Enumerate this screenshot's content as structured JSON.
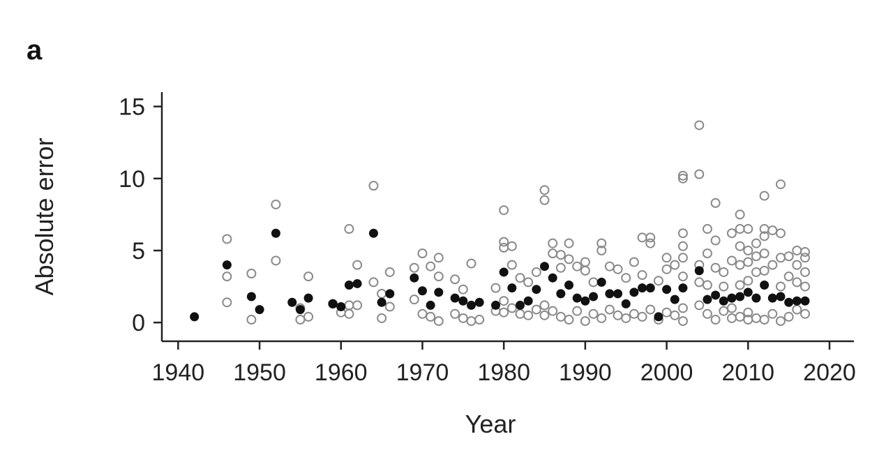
{
  "panel_label": "a",
  "colors": {
    "summary": "#111111",
    "observation": "#8a8a8a",
    "axis": "#222222"
  },
  "chart_data": {
    "type": "scatter",
    "title": "",
    "xlabel": "Year",
    "ylabel": "Absolute error",
    "xlim": [
      1938,
      2023
    ],
    "ylim": [
      -1.3,
      16
    ],
    "xticks": [
      1940,
      1950,
      1960,
      1970,
      1980,
      1990,
      2000,
      2010,
      2020
    ],
    "yticks": [
      0,
      5,
      10,
      15
    ],
    "grid": false,
    "legend": "none",
    "series": [
      {
        "marker": "open-circle",
        "points": [
          [
            1946,
            5.8
          ],
          [
            1946,
            3.2
          ],
          [
            1946,
            1.4
          ],
          [
            1949,
            3.4
          ],
          [
            1949,
            0.2
          ],
          [
            1952,
            8.2
          ],
          [
            1952,
            4.3
          ],
          [
            1955,
            0.2
          ],
          [
            1955,
            1.0
          ],
          [
            1956,
            3.2
          ],
          [
            1956,
            0.4
          ],
          [
            1959,
            1.3
          ],
          [
            1960,
            0.7
          ],
          [
            1961,
            6.5
          ],
          [
            1961,
            1.2
          ],
          [
            1961,
            0.6
          ],
          [
            1962,
            4.0
          ],
          [
            1962,
            1.2
          ],
          [
            1964,
            9.5
          ],
          [
            1964,
            2.8
          ],
          [
            1965,
            0.3
          ],
          [
            1965,
            2.0
          ],
          [
            1966,
            3.5
          ],
          [
            1966,
            1.1
          ],
          [
            1969,
            3.8
          ],
          [
            1969,
            1.6
          ],
          [
            1970,
            4.8
          ],
          [
            1970,
            0.6
          ],
          [
            1971,
            3.9
          ],
          [
            1971,
            0.4
          ],
          [
            1972,
            4.5
          ],
          [
            1972,
            3.2
          ],
          [
            1972,
            0.1
          ],
          [
            1974,
            3.0
          ],
          [
            1974,
            0.6
          ],
          [
            1975,
            2.3
          ],
          [
            1975,
            0.3
          ],
          [
            1976,
            4.1
          ],
          [
            1976,
            0.1
          ],
          [
            1977,
            0.2
          ],
          [
            1979,
            2.4
          ],
          [
            1979,
            0.8
          ],
          [
            1980,
            7.8
          ],
          [
            1980,
            5.6
          ],
          [
            1980,
            5.2
          ],
          [
            1980,
            1.5
          ],
          [
            1980,
            0.7
          ],
          [
            1981,
            5.3
          ],
          [
            1981,
            4.0
          ],
          [
            1981,
            1.0
          ],
          [
            1982,
            3.1
          ],
          [
            1982,
            0.6
          ],
          [
            1983,
            2.8
          ],
          [
            1983,
            0.5
          ],
          [
            1984,
            3.5
          ],
          [
            1984,
            0.9
          ],
          [
            1985,
            9.2
          ],
          [
            1985,
            8.5
          ],
          [
            1985,
            1.2
          ],
          [
            1985,
            0.5
          ],
          [
            1986,
            5.5
          ],
          [
            1986,
            4.8
          ],
          [
            1986,
            0.8
          ],
          [
            1987,
            4.7
          ],
          [
            1987,
            3.8
          ],
          [
            1987,
            0.4
          ],
          [
            1988,
            5.5
          ],
          [
            1988,
            4.4
          ],
          [
            1988,
            0.2
          ],
          [
            1989,
            3.9
          ],
          [
            1989,
            0.8
          ],
          [
            1990,
            4.2
          ],
          [
            1990,
            3.6
          ],
          [
            1990,
            0.1
          ],
          [
            1991,
            2.8
          ],
          [
            1991,
            0.6
          ],
          [
            1992,
            5.5
          ],
          [
            1992,
            5.0
          ],
          [
            1992,
            0.3
          ],
          [
            1993,
            3.9
          ],
          [
            1993,
            0.9
          ],
          [
            1994,
            3.7
          ],
          [
            1994,
            0.5
          ],
          [
            1995,
            3.1
          ],
          [
            1995,
            0.3
          ],
          [
            1996,
            4.2
          ],
          [
            1996,
            0.6
          ],
          [
            1997,
            5.9
          ],
          [
            1997,
            3.3
          ],
          [
            1997,
            0.4
          ],
          [
            1998,
            5.9
          ],
          [
            1998,
            5.5
          ],
          [
            1998,
            0.9
          ],
          [
            1999,
            2.9
          ],
          [
            1999,
            0.2
          ],
          [
            2000,
            4.5
          ],
          [
            2000,
            3.7
          ],
          [
            2000,
            0.7
          ],
          [
            2001,
            4.0
          ],
          [
            2001,
            0.5
          ],
          [
            2002,
            10.2
          ],
          [
            2002,
            10.0
          ],
          [
            2002,
            6.2
          ],
          [
            2002,
            5.3
          ],
          [
            2002,
            4.5
          ],
          [
            2002,
            3.2
          ],
          [
            2002,
            1.0
          ],
          [
            2002,
            0.1
          ],
          [
            2004,
            13.7
          ],
          [
            2004,
            10.3
          ],
          [
            2004,
            4.0
          ],
          [
            2004,
            2.8
          ],
          [
            2004,
            1.2
          ],
          [
            2005,
            6.5
          ],
          [
            2005,
            4.8
          ],
          [
            2005,
            2.6
          ],
          [
            2005,
            0.6
          ],
          [
            2006,
            8.3
          ],
          [
            2006,
            5.7
          ],
          [
            2006,
            3.8
          ],
          [
            2006,
            0.2
          ],
          [
            2007,
            3.5
          ],
          [
            2007,
            2.5
          ],
          [
            2007,
            0.8
          ],
          [
            2008,
            6.2
          ],
          [
            2008,
            4.3
          ],
          [
            2008,
            1.0
          ],
          [
            2008,
            0.3
          ],
          [
            2009,
            7.5
          ],
          [
            2009,
            6.5
          ],
          [
            2009,
            5.3
          ],
          [
            2009,
            4.0
          ],
          [
            2009,
            2.6
          ],
          [
            2009,
            0.4
          ],
          [
            2010,
            6.5
          ],
          [
            2010,
            5.0
          ],
          [
            2010,
            4.2
          ],
          [
            2010,
            2.9
          ],
          [
            2010,
            0.7
          ],
          [
            2010,
            0.2
          ],
          [
            2011,
            5.5
          ],
          [
            2011,
            4.6
          ],
          [
            2011,
            3.5
          ],
          [
            2011,
            0.3
          ],
          [
            2012,
            8.8
          ],
          [
            2012,
            6.5
          ],
          [
            2012,
            6.0
          ],
          [
            2012,
            4.8
          ],
          [
            2012,
            3.6
          ],
          [
            2012,
            0.2
          ],
          [
            2013,
            6.4
          ],
          [
            2013,
            4.0
          ],
          [
            2013,
            0.6
          ],
          [
            2014,
            9.6
          ],
          [
            2014,
            6.2
          ],
          [
            2014,
            4.5
          ],
          [
            2014,
            2.5
          ],
          [
            2014,
            0.1
          ],
          [
            2015,
            4.6
          ],
          [
            2015,
            3.2
          ],
          [
            2015,
            0.4
          ],
          [
            2016,
            5.0
          ],
          [
            2016,
            4.0
          ],
          [
            2016,
            2.8
          ],
          [
            2016,
            0.9
          ],
          [
            2017,
            4.9
          ],
          [
            2017,
            4.5
          ],
          [
            2017,
            3.5
          ],
          [
            2017,
            2.5
          ],
          [
            2017,
            0.6
          ]
        ]
      },
      {
        "marker": "filled-circle",
        "points": [
          [
            1942,
            0.4
          ],
          [
            1946,
            4.0
          ],
          [
            1949,
            1.8
          ],
          [
            1950,
            0.9
          ],
          [
            1952,
            6.2
          ],
          [
            1954,
            1.4
          ],
          [
            1955,
            0.9
          ],
          [
            1956,
            1.7
          ],
          [
            1959,
            1.3
          ],
          [
            1960,
            1.1
          ],
          [
            1961,
            2.6
          ],
          [
            1962,
            2.7
          ],
          [
            1964,
            6.2
          ],
          [
            1965,
            1.4
          ],
          [
            1966,
            2.0
          ],
          [
            1969,
            3.1
          ],
          [
            1970,
            2.2
          ],
          [
            1971,
            1.2
          ],
          [
            1972,
            2.1
          ],
          [
            1974,
            1.7
          ],
          [
            1975,
            1.5
          ],
          [
            1976,
            1.2
          ],
          [
            1977,
            1.4
          ],
          [
            1979,
            1.2
          ],
          [
            1980,
            3.5
          ],
          [
            1981,
            2.4
          ],
          [
            1982,
            1.2
          ],
          [
            1983,
            1.5
          ],
          [
            1984,
            2.3
          ],
          [
            1985,
            3.9
          ],
          [
            1986,
            3.1
          ],
          [
            1987,
            2.0
          ],
          [
            1988,
            2.6
          ],
          [
            1989,
            1.7
          ],
          [
            1990,
            1.5
          ],
          [
            1991,
            1.8
          ],
          [
            1992,
            2.8
          ],
          [
            1993,
            2.0
          ],
          [
            1994,
            2.0
          ],
          [
            1995,
            1.3
          ],
          [
            1996,
            2.1
          ],
          [
            1997,
            2.4
          ],
          [
            1998,
            2.4
          ],
          [
            1999,
            0.4
          ],
          [
            2000,
            2.3
          ],
          [
            2001,
            1.6
          ],
          [
            2002,
            2.4
          ],
          [
            2004,
            3.6
          ],
          [
            2005,
            1.6
          ],
          [
            2006,
            1.9
          ],
          [
            2007,
            1.5
          ],
          [
            2008,
            1.7
          ],
          [
            2009,
            1.8
          ],
          [
            2010,
            2.1
          ],
          [
            2011,
            1.7
          ],
          [
            2012,
            2.6
          ],
          [
            2013,
            1.7
          ],
          [
            2014,
            1.8
          ],
          [
            2015,
            1.4
          ],
          [
            2016,
            1.5
          ],
          [
            2017,
            1.5
          ]
        ]
      }
    ]
  }
}
